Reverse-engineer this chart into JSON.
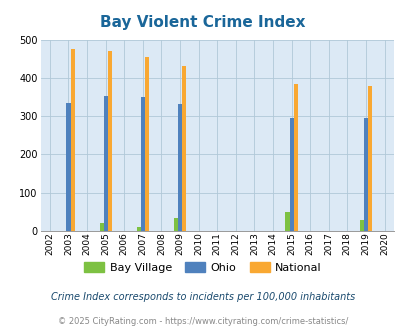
{
  "title": "Bay Violent Crime Index",
  "years": [
    2002,
    2003,
    2004,
    2005,
    2006,
    2007,
    2008,
    2009,
    2010,
    2011,
    2012,
    2013,
    2014,
    2015,
    2016,
    2017,
    2018,
    2019,
    2020
  ],
  "bay_village": [
    0,
    0,
    0,
    22,
    0,
    10,
    0,
    33,
    0,
    0,
    0,
    0,
    0,
    50,
    0,
    0,
    0,
    30,
    0
  ],
  "ohio": [
    0,
    335,
    0,
    352,
    0,
    350,
    0,
    333,
    0,
    0,
    0,
    0,
    0,
    295,
    0,
    0,
    0,
    295,
    0
  ],
  "national": [
    0,
    476,
    0,
    470,
    0,
    455,
    0,
    432,
    0,
    0,
    0,
    0,
    0,
    383,
    0,
    0,
    0,
    380,
    0
  ],
  "bay_village_color": "#7dc142",
  "ohio_color": "#4f81bd",
  "national_color": "#f9a832",
  "bg_color": "#dce9f5",
  "title_color": "#1a6699",
  "grid_color": "#b0c8d8",
  "ylim": [
    0,
    500
  ],
  "yticks": [
    0,
    100,
    200,
    300,
    400,
    500
  ],
  "footnote1": "Crime Index corresponds to incidents per 100,000 inhabitants",
  "footnote2": "© 2025 CityRating.com - https://www.cityrating.com/crime-statistics/",
  "bar_width": 0.22
}
